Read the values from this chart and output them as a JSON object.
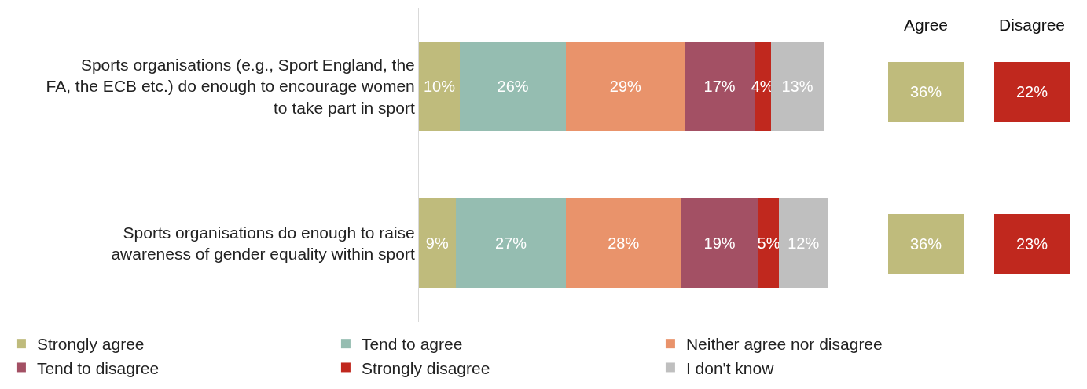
{
  "chart_data": [
    {
      "type": "bar",
      "orientation": "horizontal",
      "stacked": true,
      "legend": "bottom",
      "grid": false,
      "tick_labels": "y",
      "categories": [
        "Sports organisations (e.g., Sport England, the FA, the ECB etc.) do enough to encourage women to take part in sport",
        "Sports organisations do enough to raise awareness of gender equality within sport"
      ],
      "series": [
        {
          "name": "Strongly agree",
          "color": "#bfbb7c",
          "values": [
            10,
            9
          ],
          "value_labels": [
            "10%",
            "9%"
          ]
        },
        {
          "name": "Tend to agree",
          "color": "#95bdb1",
          "values": [
            26,
            27
          ],
          "value_labels": [
            "26%",
            "27%"
          ]
        },
        {
          "name": "Neither agree nor disagree",
          "color": "#e9936b",
          "values": [
            29,
            28
          ],
          "value_labels": [
            "29%",
            "28%"
          ]
        },
        {
          "name": "Tend to disagree",
          "color": "#a35064",
          "values": [
            17,
            19
          ],
          "value_labels": [
            "17%",
            "19%"
          ]
        },
        {
          "name": "Strongly disagree",
          "color": "#c0281e",
          "values": [
            4,
            5
          ],
          "value_labels": [
            "4%",
            "5%"
          ]
        },
        {
          "name": "I don't know",
          "color": "#bfbfbf",
          "values": [
            13,
            12
          ],
          "value_labels": [
            "13%",
            "12%"
          ]
        }
      ]
    },
    {
      "type": "other",
      "categories": [
        "Agree",
        "Disagree"
      ],
      "series": [
        {
          "values": [
            36,
            22
          ],
          "colors": [
            "#bfbb7c",
            "#c0281e"
          ],
          "value_labels": [
            "36%",
            "22%"
          ]
        },
        {
          "values": [
            36,
            23
          ],
          "colors": [
            "#bfbb7c",
            "#c0281e"
          ],
          "value_labels": [
            "36%",
            "23%"
          ]
        }
      ]
    }
  ]
}
